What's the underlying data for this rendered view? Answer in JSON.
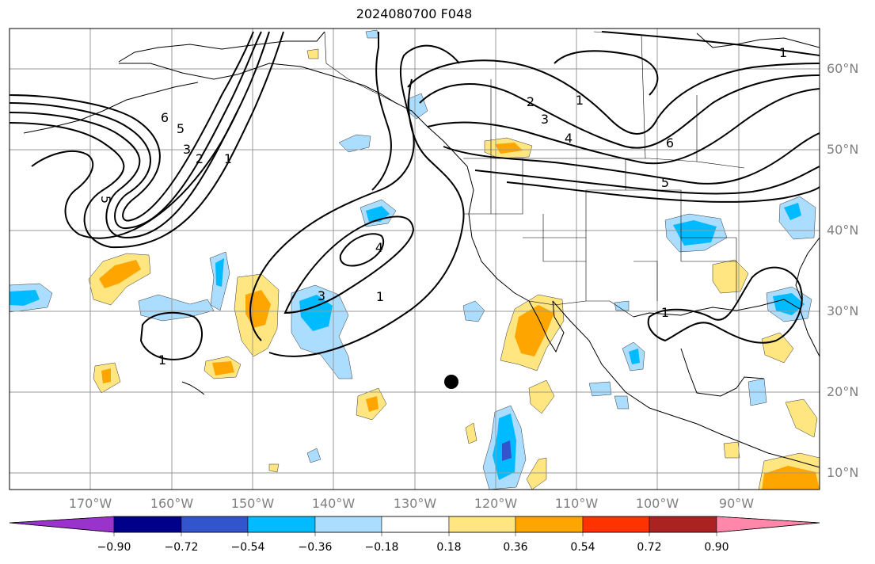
{
  "title": "2024080700 F048",
  "latitude_labels": [
    "60°N",
    "50°N",
    "40°N",
    "30°N",
    "20°N",
    "10°N"
  ],
  "longitude_labels": [
    "170°W",
    "160°W",
    "150°W",
    "140°W",
    "130°W",
    "120°W",
    "110°W",
    "100°W",
    "90°W"
  ],
  "colorbar": {
    "tick_labels": [
      "−0.90",
      "−0.72",
      "−0.54",
      "−0.36",
      "−0.18",
      "0.18",
      "0.36",
      "0.54",
      "0.72",
      "0.90"
    ],
    "colors": [
      "#9933cc",
      "#000088",
      "#3355cc",
      "#00bbff",
      "#aaddff",
      "#ffffff",
      "#ffe680",
      "#ffa500",
      "#ff3300",
      "#aa2222",
      "#ff88aa"
    ],
    "extend": "both"
  },
  "contour_labels": {
    "west_6": "6",
    "west_5": "5",
    "west_3": "3",
    "west_2": "2",
    "west_1": "1",
    "west_5b": "5",
    "mid_4": "4",
    "mid_3": "3",
    "mid_1": "1",
    "hi_low_1": "1",
    "ne_1": "1",
    "ne_2": "2",
    "ne_1b": "1",
    "ne_3": "3",
    "ne_4": "4",
    "ne_6": "6",
    "ne_5": "5",
    "gulf_1": "1"
  },
  "colors": {
    "contour": "#000000",
    "grid": "#999999",
    "land": "#000000",
    "axis_text": "#808080"
  },
  "map_extent": {
    "lon_min": -180,
    "lon_max": -80,
    "lat_min": 8,
    "lat_max": 65
  }
}
